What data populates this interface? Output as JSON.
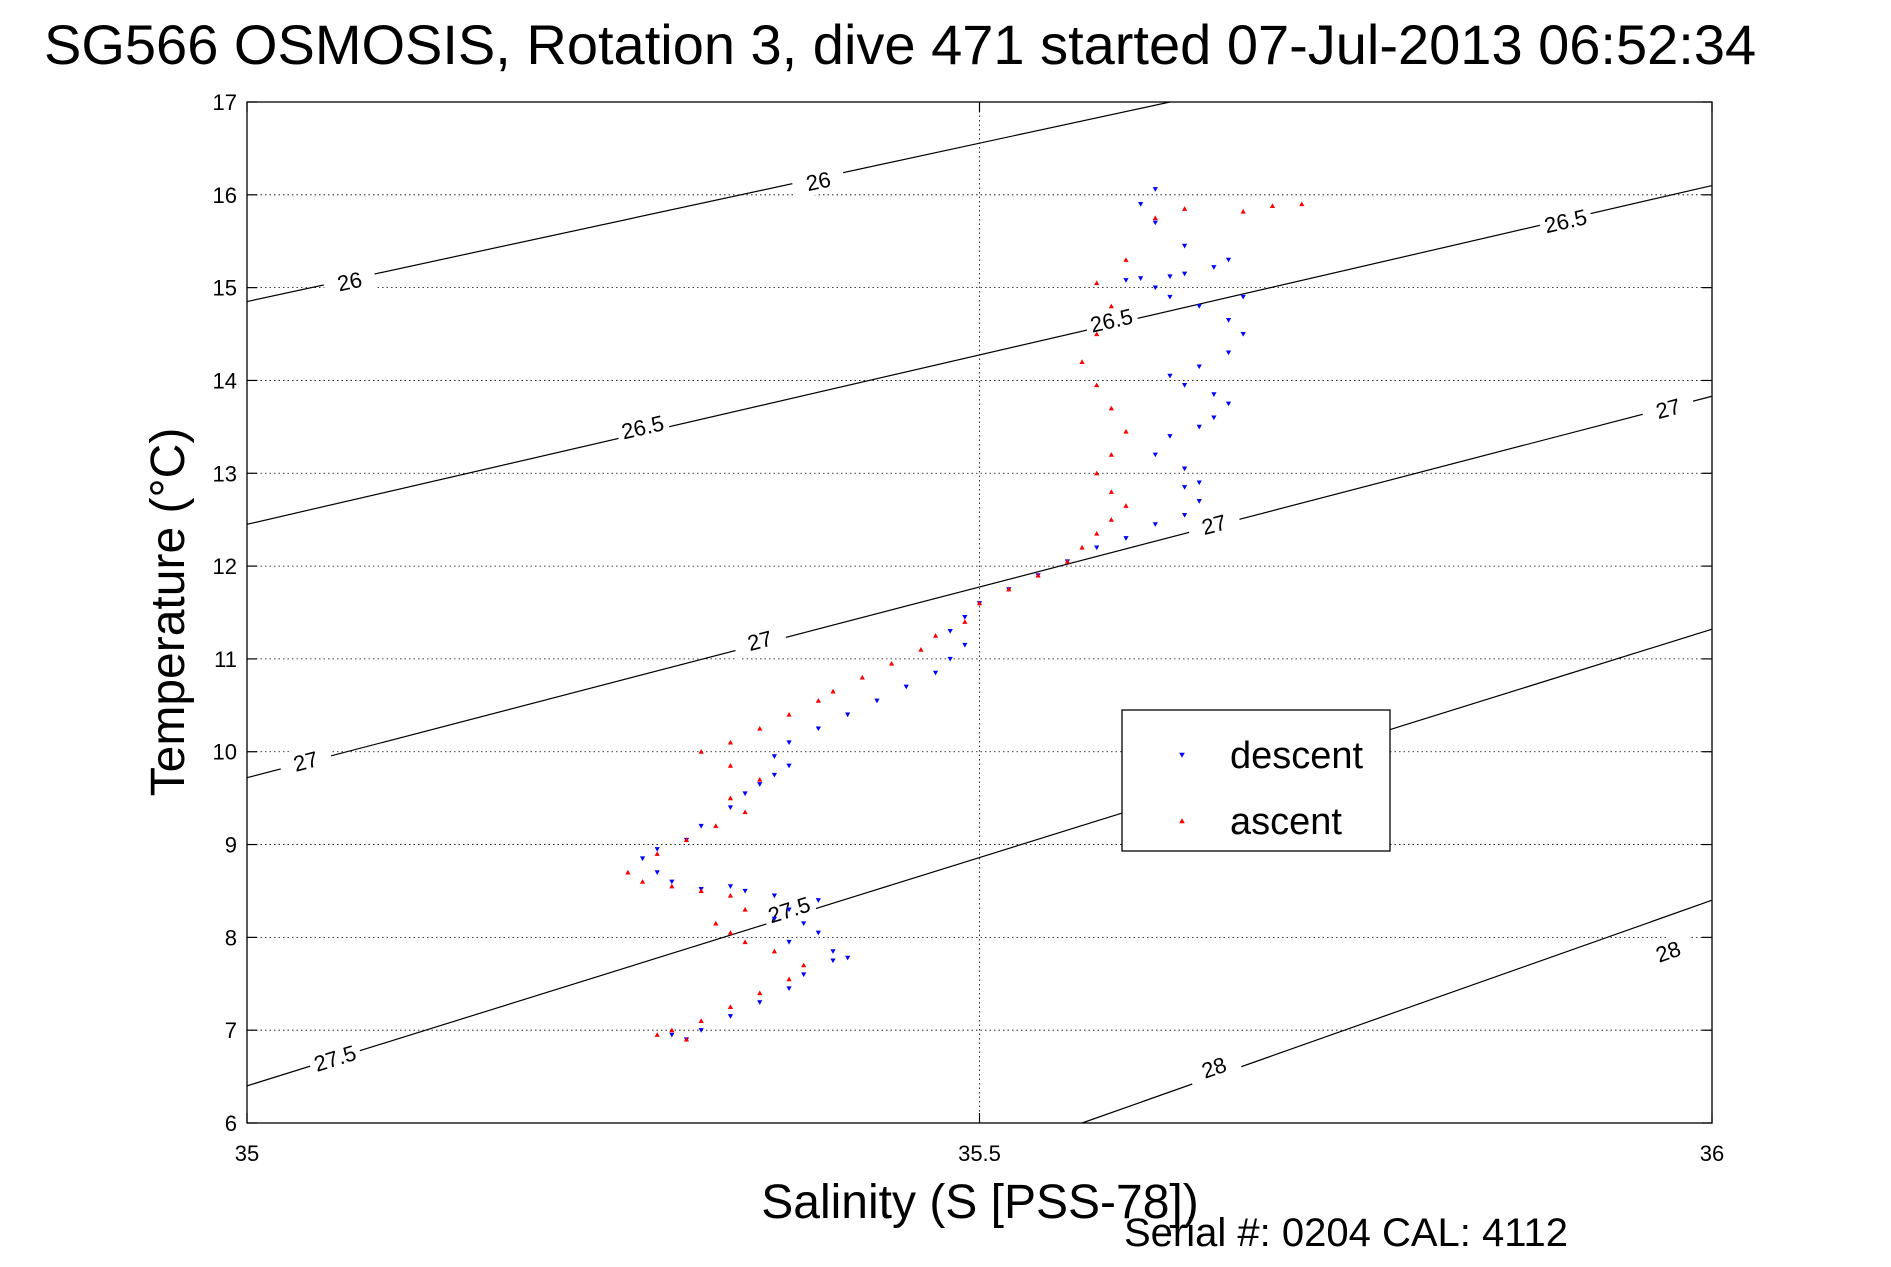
{
  "title": "SG566 OSMOSIS, Rotation 3, dive 471 started 07-Jul-2013 06:52:34",
  "footer": "Serial #: 0204  CAL: 4112",
  "legend": {
    "descent": "descent",
    "ascent": "ascent",
    "placement": "center-right"
  },
  "colors": {
    "descent": "#0000ff",
    "ascent": "#ff0000",
    "contour": "#000000",
    "grid": "#000000"
  },
  "chart_data": {
    "type": "scatter",
    "title": "SG566 OSMOSIS, Rotation 3, dive 471 started 07-Jul-2013 06:52:34",
    "xlabel": "Salinity (S [PSS-78])",
    "ylabel": "Temperature (°C)",
    "xlim": [
      35,
      36
    ],
    "ylim": [
      6,
      17
    ],
    "grid": "dotted",
    "xticks": [
      "35",
      "35.5",
      "36"
    ],
    "yticks": [
      "6",
      "7",
      "8",
      "9",
      "10",
      "11",
      "12",
      "13",
      "14",
      "15",
      "16",
      "17"
    ],
    "density_contours": [
      {
        "level": "26",
        "points": [
          [
            35,
            14.85
          ],
          [
            35.63,
            17
          ]
        ],
        "labels": [
          [
            35.07,
            15.07
          ],
          [
            35.39,
            16.15
          ]
        ]
      },
      {
        "level": "26.5",
        "points": [
          [
            35,
            12.45
          ],
          [
            36,
            16.1
          ]
        ],
        "labels": [
          [
            35.27,
            13.5
          ],
          [
            35.59,
            14.65
          ],
          [
            35.9,
            15.72
          ]
        ]
      },
      {
        "level": "27",
        "points": [
          [
            35,
            9.72
          ],
          [
            36,
            13.83
          ]
        ],
        "labels": [
          [
            35.04,
            9.9
          ],
          [
            35.35,
            11.2
          ],
          [
            35.66,
            12.45
          ],
          [
            35.97,
            13.7
          ]
        ]
      },
      {
        "level": "27.5",
        "points": [
          [
            35,
            6.4
          ],
          [
            36,
            11.32
          ]
        ],
        "labels": [
          [
            35.06,
            6.7
          ],
          [
            35.37,
            8.3
          ]
        ]
      },
      {
        "level": "28",
        "points": [
          [
            35.57,
            6
          ],
          [
            36,
            8.4
          ]
        ],
        "labels": [
          [
            35.66,
            6.6
          ],
          [
            35.97,
            7.85
          ]
        ]
      }
    ],
    "series": [
      {
        "name": "descent",
        "marker": "triangle-down",
        "x": [
          35.3,
          35.29,
          35.31,
          35.33,
          35.35,
          35.37,
          35.38,
          35.4,
          35.41,
          35.4,
          35.37,
          35.39,
          35.38,
          35.36,
          35.37,
          35.39,
          35.36,
          35.34,
          35.33,
          35.31,
          35.29,
          35.28,
          35.27,
          35.28,
          35.3,
          35.31,
          35.33,
          35.34,
          35.35,
          35.36,
          35.37,
          35.36,
          35.37,
          35.39,
          35.41,
          35.43,
          35.45,
          35.47,
          35.48,
          35.49,
          35.48,
          35.49,
          35.5,
          35.52,
          35.54,
          35.56,
          35.58,
          35.6,
          35.62,
          35.64,
          35.65,
          35.64,
          35.65,
          35.64,
          35.62,
          35.63,
          35.65,
          35.66,
          35.67,
          35.66,
          35.64,
          35.63,
          35.65,
          35.67,
          35.68,
          35.67,
          35.65,
          35.63,
          35.62,
          35.6,
          35.61,
          35.63,
          35.64,
          35.66,
          35.68,
          35.67,
          35.64,
          35.62,
          35.61,
          35.62
        ],
        "y": [
          6.9,
          6.95,
          7.0,
          7.15,
          7.3,
          7.45,
          7.6,
          7.75,
          7.78,
          7.85,
          7.95,
          8.05,
          8.15,
          8.2,
          8.3,
          8.4,
          8.45,
          8.5,
          8.55,
          8.52,
          8.6,
          8.7,
          8.85,
          8.95,
          9.05,
          9.2,
          9.4,
          9.55,
          9.65,
          9.75,
          9.85,
          9.95,
          10.1,
          10.25,
          10.4,
          10.55,
          10.7,
          10.85,
          11.0,
          11.15,
          11.3,
          11.45,
          11.6,
          11.75,
          11.9,
          12.05,
          12.2,
          12.3,
          12.45,
          12.55,
          12.7,
          12.85,
          12.9,
          13.05,
          13.2,
          13.4,
          13.5,
          13.6,
          13.75,
          13.85,
          13.95,
          14.05,
          14.15,
          14.3,
          14.5,
          14.65,
          14.8,
          14.9,
          15.0,
          15.08,
          15.1,
          15.12,
          15.15,
          15.22,
          14.9,
          15.3,
          15.45,
          15.7,
          15.9,
          16.06
        ]
      },
      {
        "name": "ascent",
        "marker": "triangle-up",
        "x": [
          35.3,
          35.28,
          35.29,
          35.31,
          35.33,
          35.35,
          35.37,
          35.38,
          35.36,
          35.34,
          35.33,
          35.32,
          35.34,
          35.33,
          35.31,
          35.29,
          35.27,
          35.26,
          35.28,
          35.3,
          35.32,
          35.34,
          35.33,
          35.35,
          35.33,
          35.31,
          35.33,
          35.35,
          35.37,
          35.39,
          35.4,
          35.42,
          35.44,
          35.46,
          35.47,
          35.49,
          35.5,
          35.52,
          35.54,
          35.56,
          35.57,
          35.58,
          35.59,
          35.6,
          35.59,
          35.58,
          35.59,
          35.6,
          35.59,
          35.58,
          35.57,
          35.58,
          35.59,
          35.58,
          35.6,
          35.62,
          35.64,
          35.68,
          35.7,
          35.72
        ],
        "y": [
          6.9,
          6.95,
          7.0,
          7.1,
          7.25,
          7.4,
          7.55,
          7.7,
          7.85,
          7.95,
          8.05,
          8.15,
          8.3,
          8.45,
          8.5,
          8.55,
          8.6,
          8.7,
          8.9,
          9.05,
          9.2,
          9.35,
          9.5,
          9.7,
          9.85,
          10.0,
          10.1,
          10.25,
          10.4,
          10.55,
          10.65,
          10.8,
          10.95,
          11.1,
          11.25,
          11.4,
          11.6,
          11.75,
          11.9,
          12.05,
          12.2,
          12.35,
          12.5,
          12.65,
          12.8,
          13.0,
          13.2,
          13.45,
          13.7,
          13.95,
          14.2,
          14.5,
          14.8,
          15.05,
          15.3,
          15.75,
          15.85,
          15.82,
          15.88,
          15.9
        ]
      }
    ]
  }
}
